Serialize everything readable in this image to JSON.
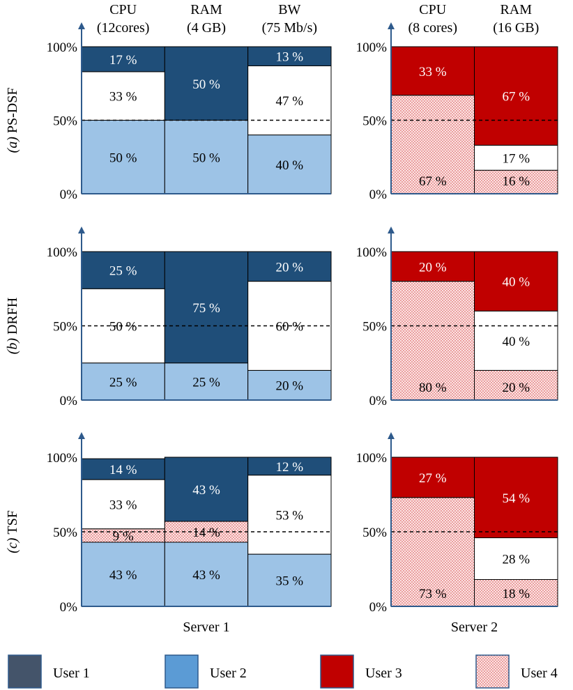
{
  "chart_data": {
    "type": "stacked-bar",
    "colors": {
      "user1": "#1f4e79",
      "user2": "#9dc3e6",
      "user3": "#c00000",
      "user4_bg": "#fbe5e5",
      "user4_dot": "#e06b6b",
      "axis": "#2e5a8c",
      "legend_user1": "#44546a",
      "legend_user2": "#5b9bd5"
    },
    "legend": [
      {
        "key": "user1",
        "label": "User 1"
      },
      {
        "key": "user2",
        "label": "User 2"
      },
      {
        "key": "user3",
        "label": "User 3"
      },
      {
        "key": "user4",
        "label": "User 4"
      }
    ],
    "servers": [
      {
        "name": "Server 1",
        "resources": [
          {
            "name": "CPU",
            "capacity": "(12cores)"
          },
          {
            "name": "RAM",
            "capacity": "(4 GB)"
          },
          {
            "name": "BW",
            "capacity": "(75 Mb/s)"
          }
        ]
      },
      {
        "name": "Server 2",
        "resources": [
          {
            "name": "CPU",
            "capacity": "(8 cores)"
          },
          {
            "name": "RAM",
            "capacity": "(16 GB)"
          }
        ]
      }
    ],
    "y_ticks": [
      "0%",
      "50%",
      "100%"
    ],
    "reference_line": 50,
    "scenarios": [
      {
        "label_prefix": "(a)",
        "label": "PS-DSF",
        "server1": [
          [
            {
              "user": "user2",
              "value": 50,
              "label": "50 %"
            },
            {
              "user": "none",
              "value": 33,
              "label": "33 %"
            },
            {
              "user": "user1",
              "value": 17,
              "label": "17 %"
            }
          ],
          [
            {
              "user": "user2",
              "value": 50,
              "label": "50 %"
            },
            {
              "user": "user1",
              "value": 50,
              "label": "50 %"
            }
          ],
          [
            {
              "user": "user2",
              "value": 40,
              "label": "40 %"
            },
            {
              "user": "none",
              "value": 47,
              "label": "47 %"
            },
            {
              "user": "user1",
              "value": 13,
              "label": "13 %"
            }
          ]
        ],
        "server2": [
          [
            {
              "user": "user4",
              "value": 67,
              "label": "67 %"
            },
            {
              "user": "user3",
              "value": 33,
              "label": "33 %"
            }
          ],
          [
            {
              "user": "user4",
              "value": 16,
              "label": "16 %"
            },
            {
              "user": "none",
              "value": 17,
              "label": "17 %"
            },
            {
              "user": "user3",
              "value": 67,
              "label": "67 %"
            }
          ]
        ]
      },
      {
        "label_prefix": "(b)",
        "label": "DRFH",
        "server1": [
          [
            {
              "user": "user2",
              "value": 25,
              "label": "25 %"
            },
            {
              "user": "none",
              "value": 50,
              "label": "50 %"
            },
            {
              "user": "user1",
              "value": 25,
              "label": "25 %"
            }
          ],
          [
            {
              "user": "user2",
              "value": 25,
              "label": "25 %"
            },
            {
              "user": "user1",
              "value": 75,
              "label": "75 %"
            }
          ],
          [
            {
              "user": "user2",
              "value": 20,
              "label": "20 %"
            },
            {
              "user": "none",
              "value": 60,
              "label": "60 %"
            },
            {
              "user": "user1",
              "value": 20,
              "label": "20 %"
            }
          ]
        ],
        "server2": [
          [
            {
              "user": "user4",
              "value": 80,
              "label": "80 %"
            },
            {
              "user": "user3",
              "value": 20,
              "label": "20 %"
            }
          ],
          [
            {
              "user": "user4",
              "value": 20,
              "label": "20 %"
            },
            {
              "user": "none",
              "value": 40,
              "label": "40 %"
            },
            {
              "user": "user3",
              "value": 40,
              "label": "40 %"
            }
          ]
        ]
      },
      {
        "label_prefix": "(c)",
        "label": "TSF",
        "server1": [
          [
            {
              "user": "user2",
              "value": 43,
              "label": "43 %"
            },
            {
              "user": "user4",
              "value": 9,
              "label": "9 %"
            },
            {
              "user": "none",
              "value": 33,
              "label": "33 %"
            },
            {
              "user": "user1",
              "value": 14,
              "label": "14 %"
            }
          ],
          [
            {
              "user": "user2",
              "value": 43,
              "label": "43 %"
            },
            {
              "user": "user4",
              "value": 14,
              "label": "14 %"
            },
            {
              "user": "user1",
              "value": 43,
              "label": "43 %"
            }
          ],
          [
            {
              "user": "user2",
              "value": 35,
              "label": "35 %"
            },
            {
              "user": "none",
              "value": 53,
              "label": "53 %"
            },
            {
              "user": "user1",
              "value": 12,
              "label": "12 %"
            }
          ]
        ],
        "server2": [
          [
            {
              "user": "user4",
              "value": 73,
              "label": "73 %"
            },
            {
              "user": "user3",
              "value": 27,
              "label": "27 %"
            }
          ],
          [
            {
              "user": "user4",
              "value": 18,
              "label": "18 %"
            },
            {
              "user": "none",
              "value": 28,
              "label": "28 %"
            },
            {
              "user": "user3",
              "value": 54,
              "label": "54 %"
            }
          ]
        ]
      }
    ]
  }
}
